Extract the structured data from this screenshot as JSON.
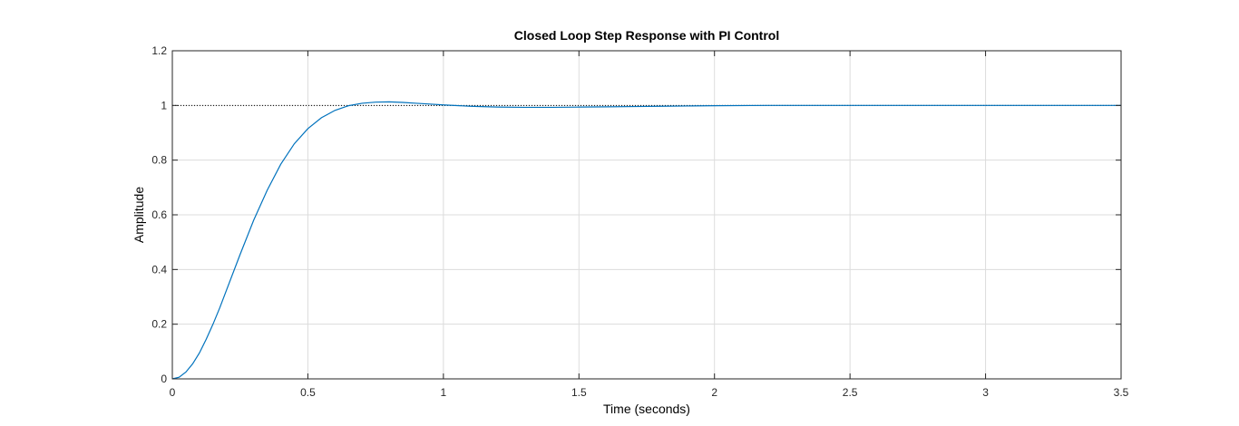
{
  "chart_data": {
    "type": "line",
    "title": "Closed Loop Step Response with PI Control",
    "xlabel": "Time (seconds)",
    "ylabel": "Amplitude",
    "xlim": [
      0,
      3.5
    ],
    "ylim": [
      0,
      1.2
    ],
    "x_ticks": [
      "0",
      "0.5",
      "1",
      "1.5",
      "2",
      "2.5",
      "3",
      "3.5"
    ],
    "y_ticks": [
      "0",
      "0.2",
      "0.4",
      "0.6",
      "0.8",
      "1",
      "1.2"
    ],
    "grid": true,
    "reference_line": {
      "y": 1,
      "style": "dotted",
      "color": "#000000"
    },
    "series": [
      {
        "color": "#0072BD",
        "x": [
          0,
          0.025,
          0.05,
          0.075,
          0.1,
          0.125,
          0.15,
          0.175,
          0.2,
          0.25,
          0.3,
          0.35,
          0.4,
          0.45,
          0.5,
          0.55,
          0.6,
          0.65,
          0.7,
          0.75,
          0.8,
          0.85,
          0.9,
          0.95,
          1.0,
          1.1,
          1.2,
          1.3,
          1.4,
          1.5,
          1.6,
          1.7,
          1.8,
          1.9,
          2.0,
          2.2,
          2.5,
          3.0,
          3.5
        ],
        "y": [
          0,
          0.006,
          0.025,
          0.055,
          0.095,
          0.145,
          0.2,
          0.26,
          0.325,
          0.455,
          0.58,
          0.69,
          0.785,
          0.86,
          0.915,
          0.955,
          0.982,
          0.999,
          1.008,
          1.012,
          1.013,
          1.011,
          1.008,
          1.005,
          1.002,
          0.997,
          0.994,
          0.993,
          0.993,
          0.994,
          0.995,
          0.996,
          0.997,
          0.998,
          0.999,
          1.0,
          1.0,
          1.0,
          1.0
        ]
      }
    ]
  }
}
